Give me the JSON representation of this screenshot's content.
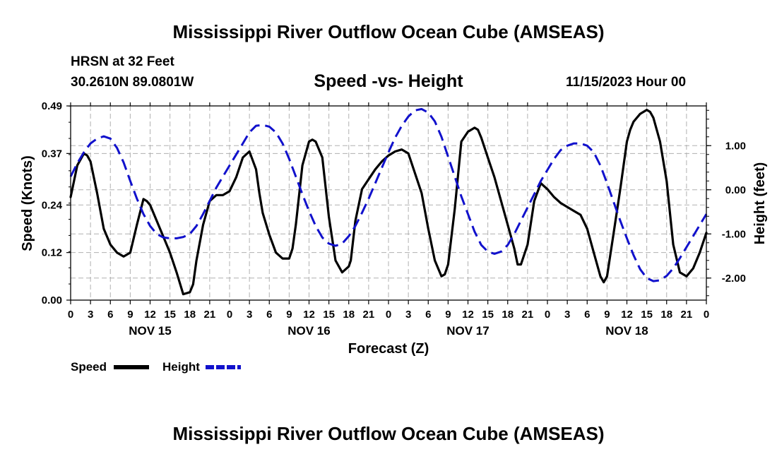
{
  "page": {
    "title_top": "Mississippi River Outflow Ocean Cube (AMSEAS)",
    "title_bottom": "Mississippi River Outflow Ocean Cube (AMSEAS)",
    "station": "HRSN at 32 Feet",
    "coords": "30.2610N  89.0801W",
    "subtitle": "Speed -vs- Height",
    "date": "11/15/2023 Hour 00"
  },
  "colors": {
    "speed": "#000000",
    "height": "#1111cc",
    "grid": "#b0b0b0"
  },
  "chart_data": {
    "type": "line",
    "title": "Speed -vs- Height",
    "xlabel": "Forecast (Z)",
    "ylabel": "Speed (Knots)",
    "y2label": "Height (feet)",
    "x_unit": "forecast hour from 11/15/2023 00Z",
    "xlim": [
      0,
      96
    ],
    "ylim": [
      0,
      0.49
    ],
    "y2lim": [
      -2.5,
      1.9
    ],
    "x_ticks": [
      0,
      3,
      6,
      9,
      12,
      15,
      18,
      21,
      24,
      27,
      30,
      33,
      36,
      39,
      42,
      45,
      48,
      51,
      54,
      57,
      60,
      63,
      66,
      69,
      72,
      75,
      78,
      81,
      84,
      87,
      90,
      93,
      96
    ],
    "x_tick_labels": [
      "0",
      "3",
      "6",
      "9",
      "12",
      "15",
      "18",
      "21",
      "0",
      "3",
      "6",
      "9",
      "12",
      "15",
      "18",
      "21",
      "0",
      "3",
      "6",
      "9",
      "12",
      "15",
      "18",
      "21",
      "0",
      "3",
      "6",
      "9",
      "12",
      "15",
      "18",
      "21",
      "0"
    ],
    "day_labels": [
      {
        "x": 12,
        "label": "NOV 15"
      },
      {
        "x": 36,
        "label": "NOV 16"
      },
      {
        "x": 60,
        "label": "NOV 17"
      },
      {
        "x": 84,
        "label": "NOV 18"
      }
    ],
    "y_ticks": [
      0.0,
      0.12,
      0.24,
      0.37,
      0.49
    ],
    "y_tick_labels": [
      "0.00",
      "0.12",
      "0.24",
      "0.37",
      "0.49"
    ],
    "y2_ticks": [
      1.0,
      0.0,
      -1.0,
      -2.0
    ],
    "y2_tick_labels": [
      "1.00",
      "0.00",
      "-1.00",
      "-2.00"
    ],
    "legend": {
      "placement": "bottom-left",
      "speed_label": "Speed",
      "height_label": "Height"
    },
    "series": [
      {
        "name": "Speed",
        "axis": "left",
        "style": "solid",
        "x": [
          0,
          1,
          2,
          2.5,
          3,
          4,
          5,
          6,
          7,
          8,
          8.5,
          9,
          10,
          11,
          11.5,
          12,
          13,
          14,
          15,
          16,
          17,
          18,
          18.5,
          19,
          20,
          21,
          22,
          23,
          24,
          25,
          26,
          27,
          28,
          28.5,
          29,
          30,
          31,
          32,
          33,
          33.5,
          34,
          35,
          36,
          36.5,
          37,
          38,
          39,
          40,
          41,
          42,
          42.3,
          43,
          44,
          45,
          46,
          47,
          48,
          49,
          50,
          51,
          52,
          53,
          54,
          55,
          56,
          56.5,
          57,
          58,
          59,
          60,
          61,
          61.5,
          62,
          63,
          64,
          65,
          66,
          67,
          67.5,
          68,
          69,
          70,
          71,
          72,
          73,
          74,
          75,
          76,
          77,
          78,
          79,
          80,
          80.5,
          81,
          82,
          83,
          84,
          84.5,
          85,
          86,
          87,
          87.5,
          88,
          89,
          90,
          91,
          92,
          93,
          94,
          95,
          96
        ],
        "values": [
          0.26,
          0.34,
          0.37,
          0.365,
          0.35,
          0.27,
          0.18,
          0.14,
          0.12,
          0.11,
          0.115,
          0.12,
          0.19,
          0.255,
          0.25,
          0.24,
          0.2,
          0.16,
          0.12,
          0.07,
          0.015,
          0.02,
          0.04,
          0.1,
          0.19,
          0.25,
          0.265,
          0.265,
          0.275,
          0.31,
          0.36,
          0.375,
          0.33,
          0.27,
          0.22,
          0.165,
          0.12,
          0.105,
          0.105,
          0.13,
          0.19,
          0.34,
          0.4,
          0.405,
          0.4,
          0.36,
          0.21,
          0.1,
          0.07,
          0.085,
          0.1,
          0.2,
          0.28,
          0.305,
          0.33,
          0.35,
          0.365,
          0.375,
          0.38,
          0.37,
          0.32,
          0.27,
          0.18,
          0.1,
          0.06,
          0.065,
          0.09,
          0.23,
          0.4,
          0.425,
          0.435,
          0.43,
          0.41,
          0.36,
          0.31,
          0.25,
          0.19,
          0.13,
          0.09,
          0.09,
          0.14,
          0.25,
          0.295,
          0.28,
          0.26,
          0.245,
          0.235,
          0.225,
          0.215,
          0.18,
          0.12,
          0.06,
          0.045,
          0.06,
          0.17,
          0.28,
          0.4,
          0.43,
          0.45,
          0.47,
          0.48,
          0.475,
          0.46,
          0.4,
          0.3,
          0.14,
          0.07,
          0.06,
          0.08,
          0.12,
          0.17
        ]
      },
      {
        "name": "Height",
        "axis": "right",
        "style": "dashed",
        "x": [
          0,
          1,
          2,
          3,
          4,
          5,
          6,
          7,
          8,
          9,
          10,
          11,
          12,
          13,
          14,
          15,
          16,
          17,
          18,
          19,
          20,
          21,
          22,
          23,
          24,
          25,
          26,
          27,
          28,
          29,
          30,
          31,
          32,
          33,
          34,
          35,
          36,
          37,
          38,
          39,
          40,
          41,
          42,
          43,
          44,
          45,
          46,
          47,
          48,
          49,
          50,
          51,
          52,
          53,
          54,
          55,
          56,
          57,
          58,
          59,
          60,
          61,
          62,
          63,
          64,
          65,
          66,
          67,
          68,
          69,
          70,
          71,
          72,
          73,
          74,
          75,
          76,
          77,
          78,
          79,
          80,
          81,
          82,
          83,
          84,
          85,
          86,
          87,
          88,
          89,
          90,
          91,
          92,
          93,
          94,
          95,
          96
        ],
        "values": [
          0.3,
          0.6,
          0.85,
          1.05,
          1.16,
          1.21,
          1.16,
          0.95,
          0.62,
          0.2,
          -0.2,
          -0.55,
          -0.82,
          -1.0,
          -1.08,
          -1.1,
          -1.1,
          -1.07,
          -1.0,
          -0.82,
          -0.55,
          -0.25,
          0.05,
          0.3,
          0.55,
          0.8,
          1.05,
          1.3,
          1.45,
          1.47,
          1.43,
          1.3,
          1.05,
          0.7,
          0.3,
          -0.1,
          -0.48,
          -0.82,
          -1.08,
          -1.22,
          -1.27,
          -1.22,
          -1.05,
          -0.82,
          -0.52,
          -0.2,
          0.15,
          0.5,
          0.85,
          1.18,
          1.45,
          1.66,
          1.8,
          1.83,
          1.75,
          1.55,
          1.2,
          0.75,
          0.3,
          -0.15,
          -0.55,
          -0.95,
          -1.25,
          -1.4,
          -1.45,
          -1.4,
          -1.25,
          -1.0,
          -0.7,
          -0.4,
          -0.1,
          0.2,
          0.45,
          0.7,
          0.9,
          1.0,
          1.05,
          1.05,
          1.0,
          0.85,
          0.55,
          0.15,
          -0.28,
          -0.7,
          -1.1,
          -1.48,
          -1.8,
          -2.0,
          -2.07,
          -2.05,
          -1.95,
          -1.78,
          -1.55,
          -1.3,
          -1.05,
          -0.8,
          -0.55
        ]
      }
    ]
  }
}
